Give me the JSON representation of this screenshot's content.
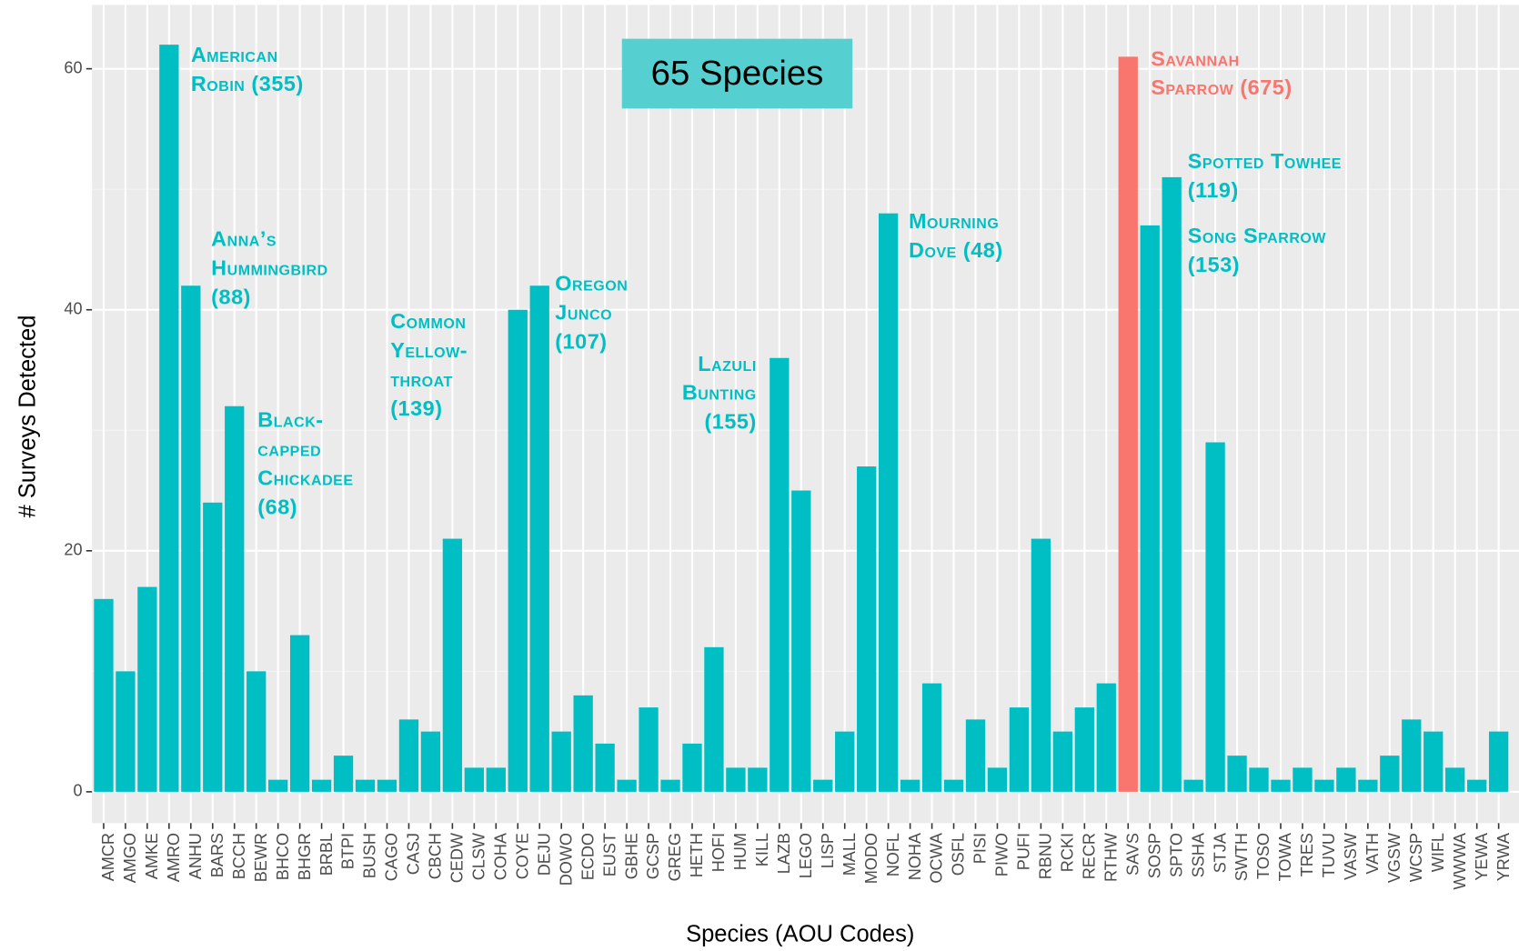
{
  "chart_data": {
    "type": "bar",
    "title": "65 Species",
    "x_label": "Species (AOU Codes)",
    "y_label": "# Surveys Detected",
    "categories": [
      "AMCR",
      "AMGO",
      "AMKE",
      "AMRO",
      "ANHU",
      "BARS",
      "BCCH",
      "BEWR",
      "BHCO",
      "BHGR",
      "BRBL",
      "BTPI",
      "BUSH",
      "CAGO",
      "CASJ",
      "CBCH",
      "CEDW",
      "CLSW",
      "COHA",
      "COYE",
      "DEJU",
      "DOWO",
      "ECDO",
      "EUST",
      "GBHE",
      "GCSP",
      "GREG",
      "HETH",
      "HOFI",
      "HUM",
      "KILL",
      "LAZB",
      "LEGO",
      "LISP",
      "MALL",
      "MODO",
      "NOFL",
      "NOHA",
      "OCWA",
      "OSFL",
      "PISI",
      "PIWO",
      "PUFI",
      "RBNU",
      "RCKI",
      "RECR",
      "RTHW",
      "SAVS",
      "SOSP",
      "SPTO",
      "SSHA",
      "STJA",
      "SWTH",
      "TOSO",
      "TOWA",
      "TRES",
      "TUVU",
      "VASW",
      "VATH",
      "VGSW",
      "WCSP",
      "WIFL",
      "WWWA",
      "YEWA",
      "YRWA"
    ],
    "values": [
      16,
      10,
      17,
      62,
      42,
      24,
      32,
      10,
      1,
      13,
      1,
      3,
      1,
      1,
      6,
      5,
      21,
      2,
      2,
      40,
      42,
      5,
      8,
      4,
      1,
      7,
      1,
      4,
      12,
      2,
      2,
      36,
      25,
      1,
      5,
      27,
      48,
      1,
      9,
      1,
      6,
      2,
      7,
      21,
      5,
      7,
      9,
      61,
      47,
      51,
      1,
      29,
      3,
      2,
      1,
      2,
      1,
      2,
      1,
      3,
      6,
      5,
      2,
      1,
      5
    ],
    "color": "#00BFC4",
    "highlight": {
      "category": "SAVS",
      "color": "#F8766D"
    },
    "ylim": [
      -2.6,
      65.3
    ],
    "yticks": [
      0,
      20,
      40,
      60
    ],
    "grid": true,
    "annotations": [
      {
        "lines": [
          "American",
          "Robin (355)"
        ],
        "color": "#00BFC4"
      },
      {
        "lines": [
          "Anna’s",
          "Hummingbird",
          "(88)"
        ],
        "color": "#00BFC4"
      },
      {
        "lines": [
          "Black-",
          "capped",
          "Chickadee",
          "(68)"
        ],
        "color": "#00BFC4"
      },
      {
        "lines": [
          "Common",
          "Yellow-",
          "throat",
          "(139)"
        ],
        "color": "#00BFC4"
      },
      {
        "lines": [
          "Oregon",
          "Junco",
          "(107)"
        ],
        "color": "#00BFC4"
      },
      {
        "lines": [
          "Lazuli",
          "Bunting",
          "(155)"
        ],
        "color": "#00BFC4"
      },
      {
        "lines": [
          "Mourning",
          "Dove (48)"
        ],
        "color": "#00BFC4"
      },
      {
        "lines": [
          "Savannah",
          "Sparrow (675)"
        ],
        "color": "#F8766D"
      },
      {
        "lines": [
          "Spotted Towhee",
          "(119)"
        ],
        "color": "#00BFC4"
      },
      {
        "lines": [
          "Song Sparrow",
          "(153)"
        ],
        "color": "#00BFC4"
      }
    ]
  }
}
